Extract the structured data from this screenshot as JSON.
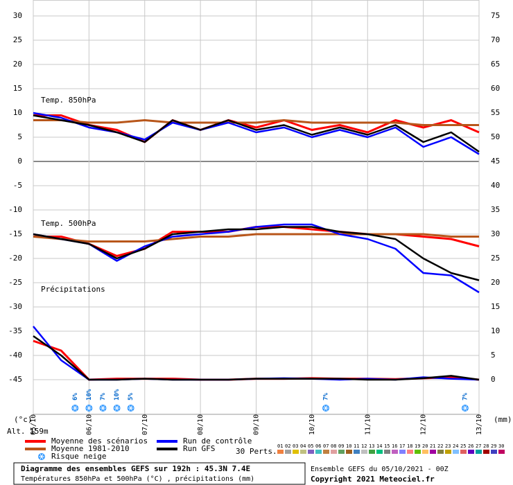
{
  "chart_data": {
    "type": "line",
    "annotations": {
      "t850": "Temp. 850hPa",
      "t500": "Temp. 500hPa",
      "precip": "Précipitations",
      "left_unit": "(°c)",
      "right_unit": "(mm)",
      "altitude": "Alt. 159m"
    },
    "x": [
      0,
      0.5,
      1,
      1.5,
      2,
      2.5,
      3,
      3.5,
      4,
      4.5,
      5,
      5.5,
      6,
      6.5,
      7,
      7.5,
      8
    ],
    "xlim": [
      0,
      8
    ],
    "xticks": [
      {
        "value": 0,
        "label": "05/10"
      },
      {
        "value": 1,
        "label": "06/10"
      },
      {
        "value": 2,
        "label": "07/10"
      },
      {
        "value": 3,
        "label": "08/10"
      },
      {
        "value": 4,
        "label": "09/10"
      },
      {
        "value": 5,
        "label": "10/10"
      },
      {
        "value": 6,
        "label": "11/10"
      },
      {
        "value": 7,
        "label": "12/10"
      },
      {
        "value": 8,
        "label": "13/10"
      }
    ],
    "ylim": [
      -45,
      30
    ],
    "yticks": [
      30,
      25,
      20,
      15,
      10,
      5,
      0,
      -5,
      -10,
      -15,
      -20,
      -25,
      -30,
      -35,
      -40,
      -45
    ],
    "y2lim": [
      0,
      75
    ],
    "y2ticks": [
      75,
      70,
      65,
      60,
      55,
      50,
      45,
      40,
      35,
      30,
      25,
      20,
      15,
      10,
      5,
      0
    ],
    "grid": true,
    "legend": "bottom-left",
    "series": [
      {
        "name": "Moyenne des scénarios",
        "color": "#ff0000",
        "t850": [
          9.5,
          9.5,
          7.5,
          6.5,
          4,
          8.5,
          6.5,
          8.5,
          7,
          8.5,
          6.5,
          7.5,
          6,
          8.5,
          7,
          8.5,
          6
        ],
        "t500": [
          -15.5,
          -15.5,
          -17,
          -19.5,
          -18,
          -14.5,
          -14.5,
          -14.5,
          -13.5,
          -13.5,
          -14,
          -14.5,
          -15,
          -15,
          -15.5,
          -16,
          -17.5
        ],
        "precip": [
          8,
          6,
          0,
          0.2,
          0.2,
          0.2,
          0,
          0,
          0.2,
          0.2,
          0.3,
          0.2,
          0.2,
          0.1,
          0.3,
          0.5,
          0
        ]
      },
      {
        "name": "Moyenne 1981-2010",
        "color": "#b8561a",
        "t850": [
          8.5,
          8.5,
          8,
          8,
          8.5,
          8,
          8,
          8,
          8,
          8.5,
          8,
          8,
          8,
          8,
          7.5,
          7.5,
          7.5
        ],
        "t500": [
          -15.5,
          -16,
          -16.5,
          -16.5,
          -16.5,
          -16,
          -15.5,
          -15.5,
          -15,
          -15,
          -15,
          -15,
          -15,
          -15,
          -15,
          -15.5,
          -15.5
        ]
      },
      {
        "name": "Run de contrôle",
        "color": "#0000ff",
        "t850": [
          10,
          9,
          7,
          6,
          4.5,
          8,
          6.5,
          8,
          6,
          7,
          5,
          6.5,
          5,
          7,
          3,
          5,
          1.5
        ],
        "t500": [
          -15,
          -16,
          -17,
          -20.5,
          -17.5,
          -15.5,
          -15,
          -14.5,
          -13.5,
          -13,
          -13,
          -15,
          -16,
          -18,
          -23,
          -23.5,
          -27
        ],
        "precip": [
          11,
          4,
          0,
          0,
          0.2,
          0,
          0,
          0,
          0.2,
          0.3,
          0.2,
          0,
          0.2,
          0,
          0.5,
          0.2,
          0
        ]
      },
      {
        "name": "Run GFS",
        "color": "#000000",
        "t850": [
          9.5,
          8.5,
          7.5,
          6,
          4,
          8.5,
          6.5,
          8.5,
          6.5,
          7.5,
          5.5,
          7,
          5.5,
          7.5,
          4,
          6,
          2
        ],
        "t500": [
          -15,
          -16,
          -17,
          -20,
          -18,
          -15,
          -14.5,
          -14,
          -14,
          -13.5,
          -13.5,
          -14.5,
          -15,
          -16,
          -20,
          -23,
          -24.5
        ],
        "precip": [
          9,
          5,
          0,
          0,
          0.2,
          0,
          0,
          0,
          0.2,
          0.2,
          0.2,
          0.2,
          0,
          0,
          0.3,
          0.8,
          0
        ]
      }
    ],
    "snow": {
      "name": "Risque neige",
      "x": [
        0.75,
        1,
        1.25,
        1.5,
        1.75,
        5.25,
        7.75
      ],
      "values": [
        6,
        10,
        7,
        10,
        5,
        7,
        7
      ],
      "value_labels": [
        "6%",
        "10%",
        "7%",
        "10%",
        "5%",
        "7%",
        "7%"
      ]
    },
    "perturbations": {
      "label": "30 Perts.",
      "numbers": [
        "01",
        "02",
        "03",
        "04",
        "05",
        "06",
        "07",
        "08",
        "09",
        "10",
        "11",
        "12",
        "13",
        "14",
        "15",
        "16",
        "17",
        "18",
        "19",
        "20",
        "21",
        "22",
        "23",
        "24",
        "25",
        "26",
        "27",
        "28",
        "29",
        "30"
      ],
      "colors": [
        "#f08040",
        "#a0a0a0",
        "#e0c000",
        "#c0c080",
        "#8060c0",
        "#40c0c0",
        "#c08040",
        "#e0a0a0",
        "#60a060",
        "#a06020",
        "#4080c0",
        "#c0c0c0",
        "#40a040",
        "#00c080",
        "#808080",
        "#c060c0",
        "#8080ff",
        "#ff8080",
        "#60c000",
        "#ffc060",
        "#a000a0",
        "#808040",
        "#c0a000",
        "#80c0ff",
        "#e06060",
        "#6000c0",
        "#00a0a0",
        "#a00000",
        "#4040c0",
        "#c00060"
      ]
    },
    "footer": {
      "title": "Diagramme des ensembles GEFS sur 192h : 45.3N 7.4E",
      "subtitle": "Températures 850hPa et 500hPa (°C) , précipitations (mm)",
      "run": "Ensemble GEFS du 05/10/2021 - 00Z",
      "copyright": "Copyright 2021 Meteociel.fr"
    }
  }
}
